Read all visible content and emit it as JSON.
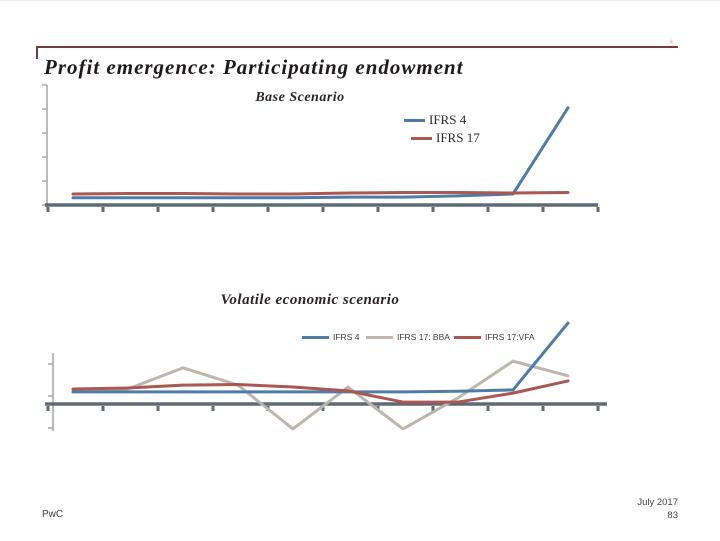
{
  "slide": {
    "title": "Profit emergence: Participating endowment",
    "rule_ornament": "*",
    "footer_left": "PwC",
    "footer_date": "July 2017",
    "footer_page": "83"
  },
  "colors": {
    "accent_rule": "#753a3a",
    "ifrs4_blue": "#4f7ba7",
    "ifrs17_red": "#ab5752",
    "bba_gray": "#bdb6ac",
    "axis_dark": "#5e6a74",
    "axis_light": "#a6a6a6"
  },
  "chart_data": [
    {
      "type": "line",
      "title": "Base Scenario",
      "xlabel": "",
      "ylabel": "",
      "x": [
        1,
        2,
        3,
        4,
        5,
        6,
        7,
        8,
        9,
        10
      ],
      "series": [
        {
          "name": "IFRS 4",
          "color_key": "ifrs4_blue",
          "values": [
            0.3,
            0.3,
            0.3,
            0.3,
            0.3,
            0.33,
            0.33,
            0.38,
            0.46,
            4.05
          ]
        },
        {
          "name": "IFRS 17",
          "color_key": "ifrs17_red",
          "values": [
            0.46,
            0.48,
            0.48,
            0.46,
            0.46,
            0.5,
            0.52,
            0.52,
            0.5,
            0.52
          ]
        }
      ],
      "ylim": [
        0,
        5
      ],
      "y_tick_values": [
        0,
        1,
        2,
        3,
        4,
        5
      ],
      "axis_tick_labels_visible": false,
      "grid": false,
      "legend_position": "top-right"
    },
    {
      "type": "line",
      "title": "Volatile economic scenario",
      "xlabel": "",
      "ylabel": "",
      "x": [
        1,
        2,
        3,
        4,
        5,
        6,
        7,
        8,
        9,
        10
      ],
      "series": [
        {
          "name": "IFRS 4",
          "color_key": "ifrs4_blue",
          "values": [
            0.38,
            0.38,
            0.38,
            0.38,
            0.38,
            0.38,
            0.38,
            0.4,
            0.44,
            2.53
          ]
        },
        {
          "name": "IFRS 17: BBA",
          "color_key": "bba_gray",
          "values": [
            0.45,
            0.47,
            1.13,
            0.59,
            -0.78,
            0.53,
            -0.78,
            0.19,
            1.34,
            0.88
          ]
        },
        {
          "name": "IFRS 17:VFA",
          "color_key": "ifrs17_red",
          "values": [
            0.47,
            0.5,
            0.59,
            0.61,
            0.53,
            0.41,
            0.06,
            0.06,
            0.34,
            0.72
          ]
        }
      ],
      "ylim": [
        -0.85,
        1.6
      ],
      "y_tick_values": [
        -0.75,
        0.25,
        1.25
      ],
      "axis_tick_labels_visible": false,
      "grid": false,
      "legend_position": "top-center"
    }
  ]
}
